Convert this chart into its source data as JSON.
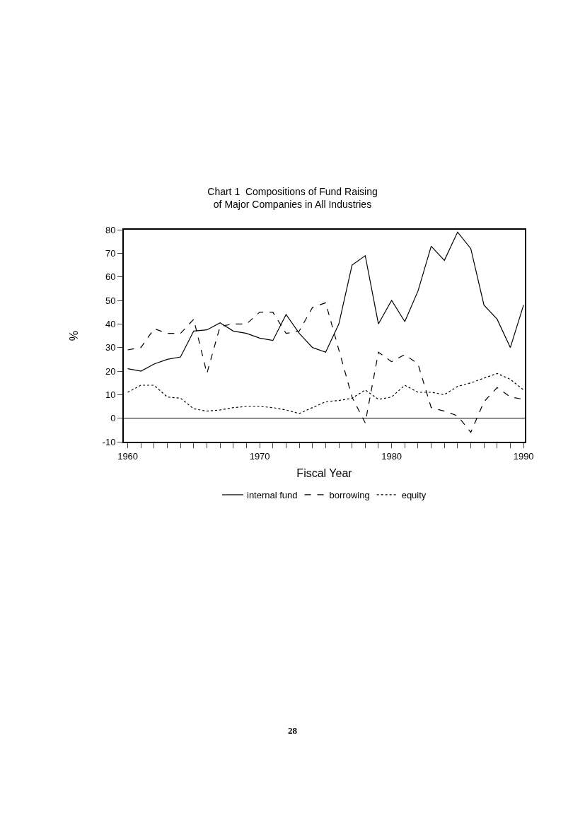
{
  "chart_data": {
    "type": "line",
    "title": "Chart 1  Compositions of Fund Raising\nof Major Companies in All Industries",
    "xlabel": "Fiscal Year",
    "ylabel": "%",
    "x": [
      1960,
      1961,
      1962,
      1963,
      1964,
      1965,
      1966,
      1967,
      1968,
      1969,
      1970,
      1971,
      1972,
      1973,
      1974,
      1975,
      1976,
      1977,
      1978,
      1979,
      1980,
      1981,
      1982,
      1983,
      1984,
      1985,
      1986,
      1987,
      1988,
      1989,
      1990
    ],
    "series": [
      {
        "name": "internal fund",
        "color": "#000000",
        "line_style": "solid",
        "values": [
          21,
          20,
          23,
          25,
          26,
          37,
          37.5,
          40.5,
          37,
          36,
          34,
          33,
          44,
          36,
          30,
          28,
          40,
          65,
          69,
          40,
          50,
          41,
          54,
          73,
          67,
          79,
          72,
          48,
          42,
          30,
          48
        ]
      },
      {
        "name": "borrowing",
        "color": "#000000",
        "line_style": "dashed",
        "values": [
          29,
          30,
          38,
          36,
          36,
          42,
          19,
          39,
          40,
          40,
          45,
          45,
          36,
          37,
          47,
          49,
          29,
          9,
          -2,
          28,
          24,
          27,
          23,
          4.5,
          3,
          1,
          -6,
          7,
          13,
          9,
          8
        ]
      },
      {
        "name": "equity",
        "color": "#000000",
        "line_style": "dotted",
        "values": [
          11,
          14,
          14,
          9,
          8.5,
          4,
          3,
          3.5,
          4.5,
          5,
          5,
          4.5,
          3.5,
          2,
          4.5,
          7,
          7.5,
          8.5,
          12,
          8,
          9,
          14,
          11,
          11,
          10,
          13.5,
          15,
          17,
          19,
          16.5,
          12
        ]
      }
    ],
    "xlim": [
      1959.7,
      1990.1
    ],
    "xticks": [
      {
        "value": 1960,
        "label": "1960"
      },
      {
        "value": 1961,
        "label": null
      },
      {
        "value": 1962,
        "label": null
      },
      {
        "value": 1963,
        "label": null
      },
      {
        "value": 1964,
        "label": null
      },
      {
        "value": 1965,
        "label": null
      },
      {
        "value": 1966,
        "label": null
      },
      {
        "value": 1967,
        "label": null
      },
      {
        "value": 1968,
        "label": null
      },
      {
        "value": 1969,
        "label": null
      },
      {
        "value": 1970,
        "label": "1970"
      },
      {
        "value": 1971,
        "label": null
      },
      {
        "value": 1972,
        "label": null
      },
      {
        "value": 1973,
        "label": null
      },
      {
        "value": 1974,
        "label": null
      },
      {
        "value": 1975,
        "label": null
      },
      {
        "value": 1976,
        "label": null
      },
      {
        "value": 1977,
        "label": null
      },
      {
        "value": 1978,
        "label": null
      },
      {
        "value": 1979,
        "label": null
      },
      {
        "value": 1980,
        "label": "1980"
      },
      {
        "value": 1981,
        "label": null
      },
      {
        "value": 1982,
        "label": null
      },
      {
        "value": 1983,
        "label": null
      },
      {
        "value": 1984,
        "label": null
      },
      {
        "value": 1985,
        "label": null
      },
      {
        "value": 1986,
        "label": null
      },
      {
        "value": 1987,
        "label": null
      },
      {
        "value": 1988,
        "label": null
      },
      {
        "value": 1989,
        "label": null
      },
      {
        "value": 1990,
        "label": "1990"
      }
    ],
    "ylim": [
      -10,
      80
    ],
    "yticks": [
      -10,
      0,
      10,
      20,
      30,
      40,
      50,
      60,
      70,
      80
    ],
    "ref_lines": [
      {
        "axis": "y",
        "value": 0
      }
    ],
    "grid": false,
    "legend": "bottom",
    "marker": "none",
    "annotations": [
      "28"
    ]
  }
}
